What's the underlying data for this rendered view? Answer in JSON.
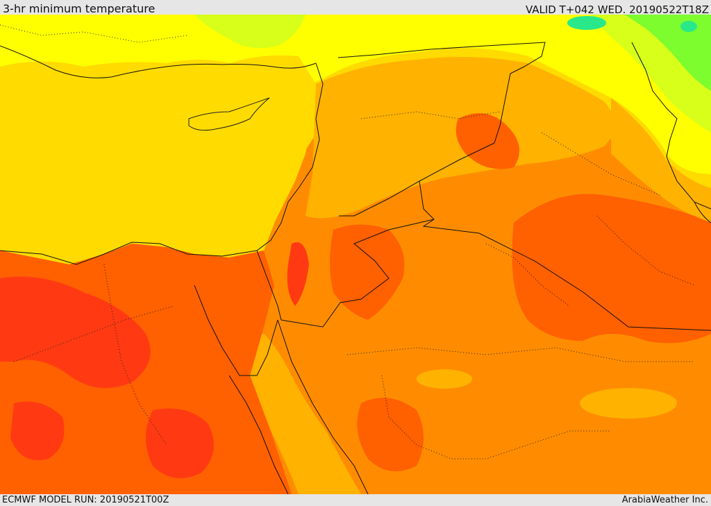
{
  "header": {
    "title": "3-hr minimum temperature",
    "valid": "VALID T+042 WED. 20190522T18Z"
  },
  "footer": {
    "model_run": "ECMWF MODEL RUN: 20190521T00Z",
    "credit": "ArabiaWeather Inc."
  },
  "map": {
    "variable": "3-hr minimum temperature",
    "colors": {
      "light_green": "#7dfc2e",
      "yellow_green": "#d7ff1a",
      "yellow": "#ffff00",
      "gold": "#ffdb00",
      "light_orange": "#ffb200",
      "orange": "#ff8c00",
      "dark_orange": "#ff6000",
      "red_orange": "#ff3a12",
      "cyan_green": "#28e88a"
    }
  }
}
